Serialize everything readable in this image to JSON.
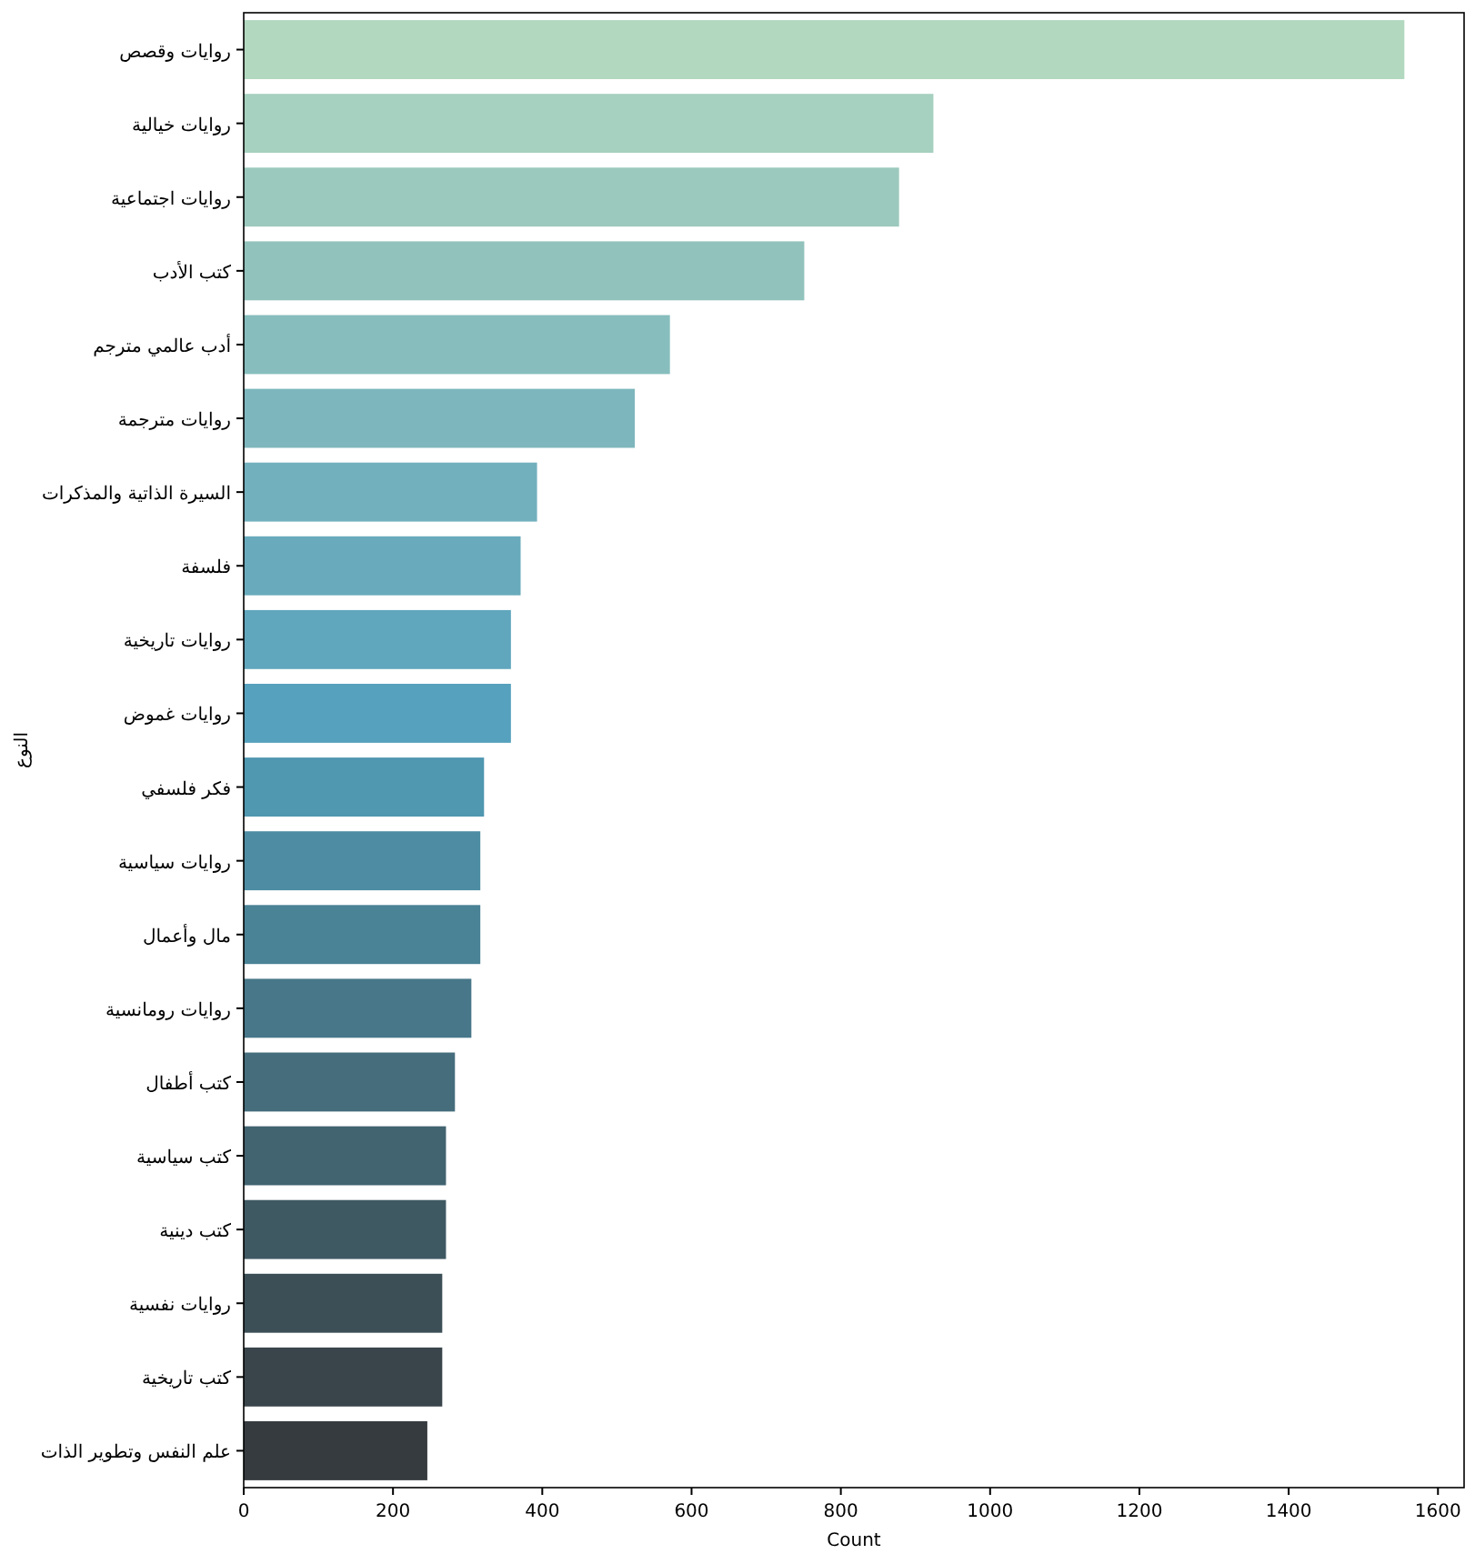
{
  "chart_data": {
    "type": "bar",
    "orientation": "horizontal",
    "xlabel": "Count",
    "ylabel": "النوع",
    "categories": [
      "روايات وقصص",
      "روايات خيالية",
      "روايات اجتماعية",
      "كتب الأدب",
      "أدب عالمي مترجم",
      "روايات مترجمة",
      "السيرة الذاتية والمذكرات",
      "فلسفة",
      "روايات تاريخية",
      "روايات غموض",
      "فكر فلسفي",
      "روايات سياسية",
      "مال وأعمال",
      "روايات رومانسية",
      "كتب أطفال",
      "كتب سياسية",
      "كتب دينية",
      "روايات نفسية",
      "كتب تاريخية",
      "علم النفس وتطوير الذات"
    ],
    "values": [
      1555,
      924,
      878,
      751,
      571,
      524,
      393,
      371,
      358,
      358,
      322,
      317,
      317,
      305,
      283,
      271,
      271,
      266,
      266,
      246
    ],
    "colors": [
      "#b2d8bf",
      "#a6d0bf",
      "#9cc9bd",
      "#92c2bc",
      "#87bdbd",
      "#7db6bc",
      "#73b0bd",
      "#69abbc",
      "#60a6bd",
      "#56a1bd",
      "#5097b0",
      "#4d8ca3",
      "#4a8296",
      "#477789",
      "#456d7c",
      "#426370",
      "#3f5963",
      "#3c4f57",
      "#39454b",
      "#363b3f"
    ],
    "xlim": [
      0,
      1635
    ],
    "xticks": [
      0,
      200,
      400,
      600,
      800,
      1000,
      1200,
      1400,
      1600
    ],
    "grid": false
  }
}
